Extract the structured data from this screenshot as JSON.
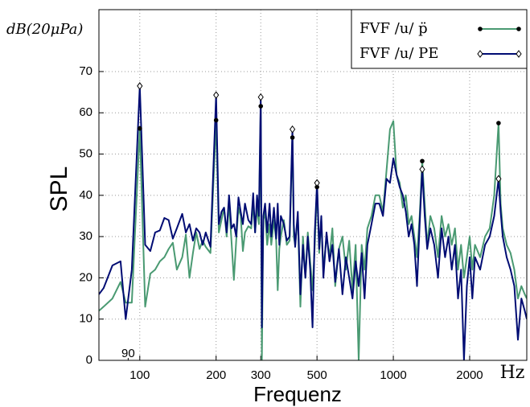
{
  "chart_data": {
    "type": "line",
    "y_unit_label": "dB(20μPa)",
    "ylabel": "SPL",
    "xlabel": "Frequenz",
    "x_unit_label": "Hz",
    "xscale": "log",
    "grid": true,
    "legend": "upper right",
    "xlim": [
      69,
      3360
    ],
    "ylim": [
      0,
      85
    ],
    "xticks": [
      100,
      200,
      300,
      500,
      1000,
      2000
    ],
    "xminor_ticks": [
      90
    ],
    "yticks": [
      0,
      10,
      20,
      30,
      40,
      50,
      60,
      70
    ],
    "x": [
      69,
      72,
      78,
      84,
      88,
      93,
      100,
      105,
      110,
      115,
      120,
      125,
      130,
      135,
      140,
      147,
      152,
      157,
      162,
      167,
      172,
      177,
      182,
      190,
      200,
      205,
      210,
      215,
      220,
      225,
      230,
      235,
      240,
      245,
      250,
      255,
      260,
      268,
      275,
      280,
      285,
      290,
      295,
      300,
      303,
      307,
      312,
      318,
      325,
      330,
      338,
      345,
      350,
      355,
      360,
      370,
      380,
      390,
      400,
      405,
      410,
      420,
      430,
      440,
      450,
      460,
      470,
      480,
      490,
      500,
      510,
      520,
      530,
      545,
      560,
      575,
      590,
      610,
      630,
      650,
      670,
      690,
      710,
      730,
      750,
      770,
      790,
      820,
      850,
      880,
      910,
      940,
      970,
      1000,
      1030,
      1060,
      1090,
      1120,
      1150,
      1180,
      1210,
      1240,
      1270,
      1300,
      1330,
      1360,
      1400,
      1450,
      1500,
      1550,
      1600,
      1650,
      1700,
      1750,
      1800,
      1850,
      1900,
      1950,
      2000,
      2050,
      2100,
      2200,
      2300,
      2400,
      2500,
      2600,
      2650,
      2700,
      2800,
      2900,
      3000,
      3100,
      3200,
      3300,
      3360
    ],
    "series": [
      {
        "name": "FVF /u/ p̈",
        "color": "#4a9a72",
        "marker": "dot",
        "marker_color": "#000000",
        "marker_x": [
          100,
          200,
          300,
          400,
          500,
          1300,
          2600
        ],
        "values": [
          12,
          13,
          15,
          19,
          14,
          14,
          56.2,
          13,
          21,
          22,
          24,
          25,
          27,
          28.5,
          22,
          25,
          30.5,
          20,
          26,
          31,
          27,
          29,
          27.5,
          26,
          58.2,
          31,
          34,
          37,
          30,
          38,
          29,
          19.5,
          29,
          37,
          35,
          26.5,
          31,
          32.5,
          32,
          38,
          31,
          37,
          33,
          61.6,
          0,
          34,
          36,
          28,
          33,
          28,
          34,
          29,
          17,
          27,
          30,
          34,
          28,
          29,
          54,
          30,
          28,
          35,
          13,
          30,
          20,
          31,
          24,
          17,
          28,
          42,
          26,
          34,
          22,
          30,
          25,
          32,
          18,
          27,
          30,
          22,
          29,
          17,
          28,
          0,
          28,
          22,
          32,
          35,
          40,
          40,
          36,
          46,
          56,
          58,
          45,
          43,
          37,
          40,
          33,
          35,
          30,
          25,
          35,
          48.3,
          38,
          28,
          35,
          32,
          25,
          35,
          30,
          33,
          28,
          32,
          22,
          28,
          20,
          25,
          30,
          22,
          28,
          25,
          30,
          32,
          40,
          57.5,
          38,
          32,
          28,
          26,
          22,
          15,
          18,
          16,
          15
        ]
      },
      {
        "name": "FVF /u/ PE",
        "color": "#000c73",
        "marker": "diamond",
        "marker_color": "#ffffff",
        "marker_x": [
          100,
          200,
          300,
          400,
          500,
          1300,
          2600
        ],
        "values": [
          16,
          17.5,
          23,
          24,
          10,
          22,
          66.5,
          28,
          26.5,
          31,
          31.5,
          34.5,
          34,
          29.5,
          32,
          35.5,
          31,
          33,
          29,
          32,
          31,
          28,
          31,
          27.5,
          64.3,
          33,
          36,
          37,
          31,
          40,
          32,
          33,
          30,
          39.5,
          36,
          33,
          38,
          34,
          33,
          40.5,
          31,
          40,
          35,
          63.8,
          8,
          35,
          38,
          31,
          38,
          30,
          37,
          29.5,
          38,
          28,
          35,
          33,
          29,
          30,
          56,
          33,
          27.5,
          36,
          16,
          28,
          20,
          30,
          22,
          8,
          31,
          43,
          27,
          35,
          20,
          31,
          24,
          28,
          19,
          27,
          16,
          25,
          20,
          15,
          24,
          18,
          26,
          15,
          28,
          33,
          38,
          38,
          35,
          44,
          43,
          49,
          45,
          42,
          40,
          36,
          30,
          33,
          28,
          18,
          33,
          46.3,
          35,
          27,
          32,
          28,
          20,
          32,
          25,
          30,
          22,
          28,
          15,
          22,
          0,
          18,
          25,
          15,
          25,
          22,
          28,
          30,
          35,
          44,
          36,
          30,
          25,
          22,
          18,
          5,
          15,
          12,
          10
        ]
      }
    ]
  }
}
